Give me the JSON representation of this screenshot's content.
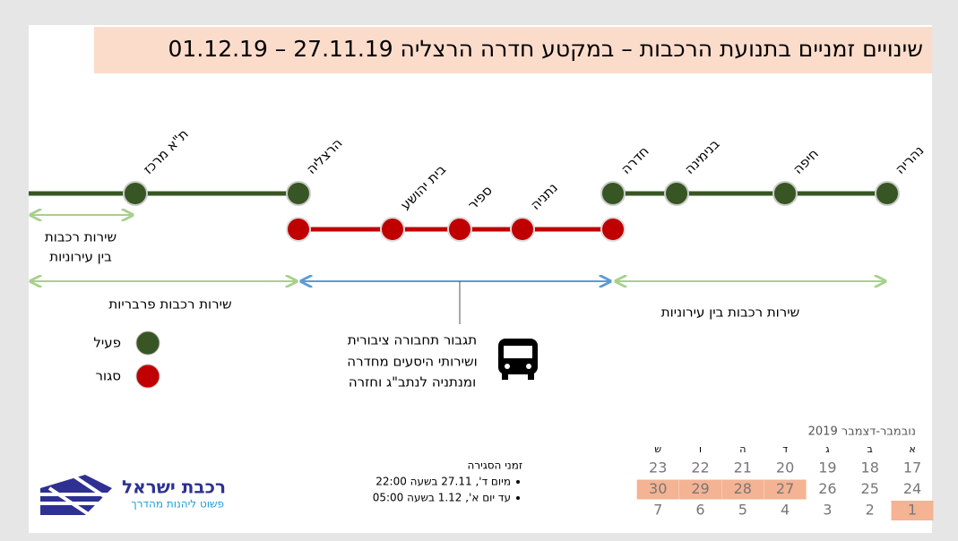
{
  "header": {
    "title": "שינויים זמניים בתנועת הרכבות – במקטע חדרה הרצליה 27.11.19 – 01.12.19"
  },
  "stations": [
    "ת\"א מרכז",
    "הרצליה",
    "בית יהושע",
    "ספיר",
    "נתניה",
    "חדרה",
    "בנימינה",
    "חיפה",
    "נהריה"
  ],
  "services": {
    "short_intercity": [
      "שירות רכבות",
      "בין עירוניות"
    ],
    "suburban": "שירות רכבות פרבריות",
    "intercity": "שירות רכבות בין עירוניות"
  },
  "legend": {
    "active": "פעיל",
    "closed": "סגור"
  },
  "bus": [
    "תגבור תחבורה ציבורית",
    "ושירותי היסעים מחדרה",
    "ומנתניה לנתב\"ג וחזרה"
  ],
  "closure": {
    "heading": "זמני הסגירה",
    "items": [
      "מיום ד', 27.11 בשעה 22:00",
      "עד יום א', 1.12 בשעה 05:00"
    ]
  },
  "calendar": {
    "title": "נובמבר-דצמבר 2019",
    "weekdays": [
      "א",
      "ב",
      "ג",
      "ד",
      "ה",
      "ו",
      "ש"
    ],
    "weeks": [
      [
        17,
        18,
        19,
        20,
        21,
        22,
        23
      ],
      [
        24,
        25,
        26,
        27,
        28,
        29,
        30
      ],
      [
        1,
        2,
        3,
        4,
        5,
        6,
        7
      ]
    ]
  },
  "logo": {
    "name": "רכבת ישראל",
    "slogan": "פשוט ליהנות מהדרך"
  }
}
